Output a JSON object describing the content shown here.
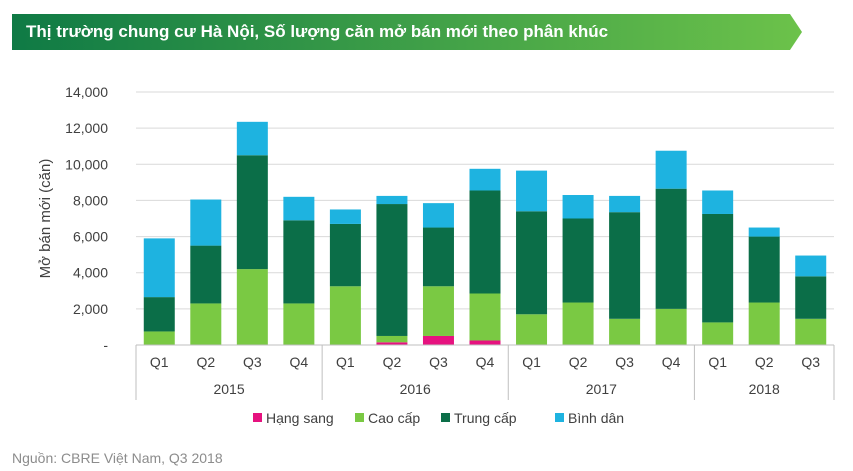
{
  "banner": {
    "title": "Thị trường chung cư Hà Nội, Số lượng căn mở bán mới theo phân khúc",
    "color_start": "#0f7a45",
    "color_end": "#6cc24a"
  },
  "source": "Nguồn: CBRE Việt Nam, Q3 2018",
  "chart_data": {
    "type": "bar",
    "stacked": true,
    "categories": [
      "Q1",
      "Q2",
      "Q3",
      "Q4",
      "Q1",
      "Q2",
      "Q3",
      "Q4",
      "Q1",
      "Q2",
      "Q3",
      "Q4",
      "Q1",
      "Q2",
      "Q3"
    ],
    "groups": [
      {
        "label": "2015",
        "count": 4
      },
      {
        "label": "2016",
        "count": 4
      },
      {
        "label": "2017",
        "count": 4
      },
      {
        "label": "2018",
        "count": 3
      }
    ],
    "series": [
      {
        "name": "Hạng sang",
        "color": "#e6127f",
        "values": [
          0,
          0,
          0,
          0,
          0,
          150,
          500,
          250,
          0,
          0,
          0,
          0,
          0,
          0,
          0
        ]
      },
      {
        "name": "Cao cấp",
        "color": "#7ac943",
        "values": [
          750,
          2300,
          4200,
          2300,
          3250,
          350,
          2750,
          2600,
          1700,
          2350,
          1450,
          2000,
          1250,
          2350,
          1450
        ]
      },
      {
        "name": "Trung cấp",
        "color": "#0b6e48",
        "values": [
          1900,
          3200,
          6300,
          4600,
          3450,
          7300,
          3250,
          5700,
          5700,
          4650,
          5900,
          6650,
          6000,
          3650,
          2350
        ]
      },
      {
        "name": "Bình dân",
        "color": "#1eb3e0",
        "values": [
          3250,
          2550,
          1850,
          1300,
          800,
          450,
          1350,
          1200,
          2250,
          1300,
          900,
          2100,
          1300,
          500,
          1150
        ]
      }
    ],
    "ylabel": "Mở bán mới (căn)",
    "ylim": [
      0,
      14000
    ],
    "yticks": [
      {
        "value": 0,
        "label": "-"
      },
      {
        "value": 2000,
        "label": "2,000"
      },
      {
        "value": 4000,
        "label": "4,000"
      },
      {
        "value": 6000,
        "label": "6,000"
      },
      {
        "value": 8000,
        "label": "8,000"
      },
      {
        "value": 10000,
        "label": "10,000"
      },
      {
        "value": 12000,
        "label": "12,000"
      },
      {
        "value": 14000,
        "label": "14,000"
      }
    ],
    "grid": true,
    "legend_position": "bottom"
  }
}
